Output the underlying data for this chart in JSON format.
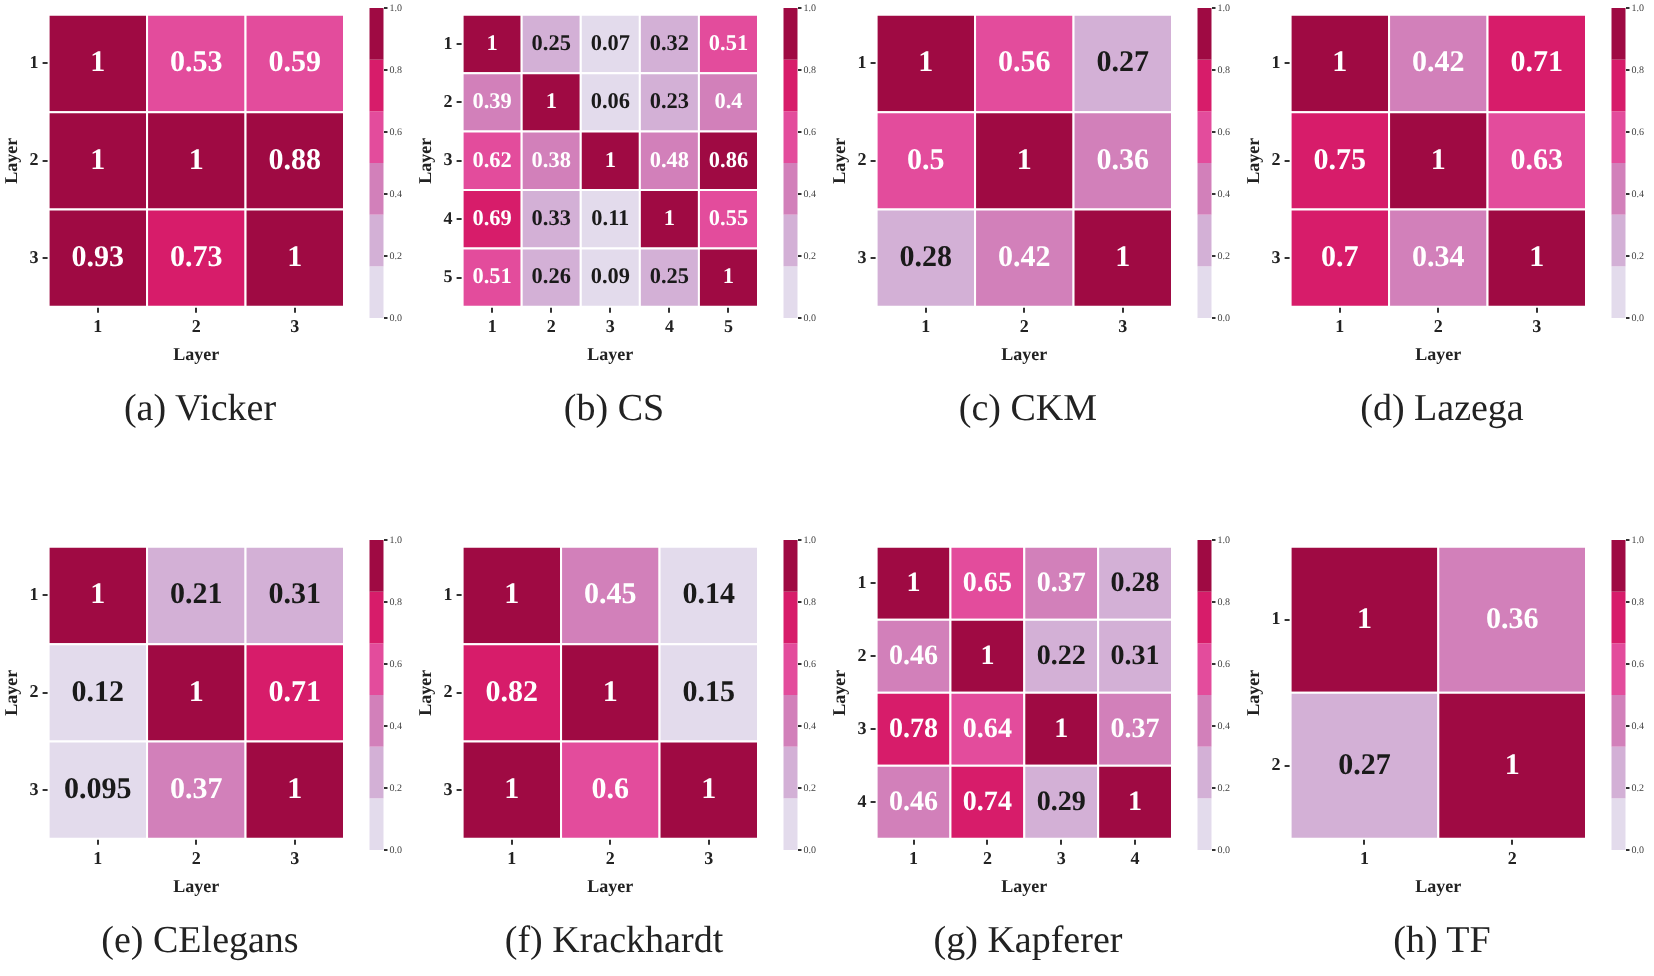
{
  "chart_data": [
    {
      "type": "heatmap",
      "title": "(a) Vicker",
      "xlabel": "Layer",
      "ylabel": "Layer",
      "categories": [
        "1",
        "2",
        "3"
      ],
      "y_categories": [
        "1",
        "2",
        "3"
      ],
      "cells": [
        [
          1,
          0.53,
          0.59
        ],
        [
          1,
          1,
          0.88
        ],
        [
          0.93,
          0.73,
          1
        ]
      ],
      "clim": [
        0,
        1
      ],
      "cticks": [
        {
          "value": 0,
          "label": "0.0"
        },
        {
          "value": 0.2,
          "label": "0.2"
        },
        {
          "value": 0.4,
          "label": "0.4"
        },
        {
          "value": 0.6,
          "label": "0.6"
        },
        {
          "value": 0.8,
          "label": "0.8"
        },
        {
          "value": 1,
          "label": "1.0"
        }
      ],
      "data_labels": true
    },
    {
      "type": "heatmap",
      "title": "(b) CS",
      "xlabel": "Layer",
      "ylabel": "Layer",
      "categories": [
        "1",
        "2",
        "3",
        "4",
        "5"
      ],
      "y_categories": [
        "1",
        "2",
        "3",
        "4",
        "5"
      ],
      "cells": [
        [
          1,
          0.25,
          0.07,
          0.32,
          0.51
        ],
        [
          0.39,
          1,
          0.06,
          0.23,
          0.4
        ],
        [
          0.62,
          0.38,
          1,
          0.48,
          0.86
        ],
        [
          0.69,
          0.33,
          0.11,
          1,
          0.55
        ],
        [
          0.51,
          0.26,
          0.09,
          0.25,
          1
        ]
      ],
      "clim": [
        0,
        1
      ],
      "cticks": [
        {
          "value": 0,
          "label": "0.0"
        },
        {
          "value": 0.2,
          "label": "0.2"
        },
        {
          "value": 0.4,
          "label": "0.4"
        },
        {
          "value": 0.6,
          "label": "0.6"
        },
        {
          "value": 0.8,
          "label": "0.8"
        },
        {
          "value": 1,
          "label": "1.0"
        }
      ],
      "data_labels": true
    },
    {
      "type": "heatmap",
      "title": "(c) CKM",
      "xlabel": "Layer",
      "ylabel": "Layer",
      "categories": [
        "1",
        "2",
        "3"
      ],
      "y_categories": [
        "1",
        "2",
        "3"
      ],
      "cells": [
        [
          1,
          0.56,
          0.27
        ],
        [
          0.5,
          1,
          0.36
        ],
        [
          0.28,
          0.42,
          1
        ]
      ],
      "clim": [
        0,
        1
      ],
      "cticks": [
        {
          "value": 0,
          "label": "0.0"
        },
        {
          "value": 0.2,
          "label": "0.2"
        },
        {
          "value": 0.4,
          "label": "0.4"
        },
        {
          "value": 0.6,
          "label": "0.6"
        },
        {
          "value": 0.8,
          "label": "0.8"
        },
        {
          "value": 1,
          "label": "1.0"
        }
      ],
      "data_labels": true
    },
    {
      "type": "heatmap",
      "title": "(d) Lazega",
      "xlabel": "Layer",
      "ylabel": "Layer",
      "categories": [
        "1",
        "2",
        "3"
      ],
      "y_categories": [
        "1",
        "2",
        "3"
      ],
      "cells": [
        [
          1,
          0.42,
          0.71
        ],
        [
          0.75,
          1,
          0.63
        ],
        [
          0.7,
          0.34,
          1
        ]
      ],
      "clim": [
        0,
        1
      ],
      "cticks": [
        {
          "value": 0,
          "label": "0.0"
        },
        {
          "value": 0.2,
          "label": "0.2"
        },
        {
          "value": 0.4,
          "label": "0.4"
        },
        {
          "value": 0.6,
          "label": "0.6"
        },
        {
          "value": 0.8,
          "label": "0.8"
        },
        {
          "value": 1,
          "label": "1.0"
        }
      ],
      "data_labels": true
    },
    {
      "type": "heatmap",
      "title": "(e) CElegans",
      "xlabel": "Layer",
      "ylabel": "Layer",
      "categories": [
        "1",
        "2",
        "3"
      ],
      "y_categories": [
        "1",
        "2",
        "3"
      ],
      "cells": [
        [
          1,
          0.21,
          0.31
        ],
        [
          0.12,
          1,
          0.71
        ],
        [
          0.095,
          0.37,
          1
        ]
      ],
      "clim": [
        0,
        1
      ],
      "cticks": [
        {
          "value": 0,
          "label": "0.0"
        },
        {
          "value": 0.2,
          "label": "0.2"
        },
        {
          "value": 0.4,
          "label": "0.4"
        },
        {
          "value": 0.6,
          "label": "0.6"
        },
        {
          "value": 0.8,
          "label": "0.8"
        },
        {
          "value": 1,
          "label": "1.0"
        }
      ],
      "data_labels": true
    },
    {
      "type": "heatmap",
      "title": "(f) Krackhardt",
      "xlabel": "Layer",
      "ylabel": "Layer",
      "categories": [
        "1",
        "2",
        "3"
      ],
      "y_categories": [
        "1",
        "2",
        "3"
      ],
      "cells": [
        [
          1,
          0.45,
          0.14
        ],
        [
          0.82,
          1,
          0.15
        ],
        [
          1,
          0.6,
          1
        ]
      ],
      "clim": [
        0,
        1
      ],
      "cticks": [
        {
          "value": 0,
          "label": "0.0"
        },
        {
          "value": 0.2,
          "label": "0.2"
        },
        {
          "value": 0.4,
          "label": "0.4"
        },
        {
          "value": 0.6,
          "label": "0.6"
        },
        {
          "value": 0.8,
          "label": "0.8"
        },
        {
          "value": 1,
          "label": "1.0"
        }
      ],
      "data_labels": true
    },
    {
      "type": "heatmap",
      "title": "(g) Kapferer",
      "xlabel": "Layer",
      "ylabel": "Layer",
      "categories": [
        "1",
        "2",
        "3",
        "4"
      ],
      "y_categories": [
        "1",
        "2",
        "3",
        "4"
      ],
      "cells": [
        [
          1,
          0.65,
          0.37,
          0.28
        ],
        [
          0.46,
          1,
          0.22,
          0.31
        ],
        [
          0.78,
          0.64,
          1,
          0.37
        ],
        [
          0.46,
          0.74,
          0.29,
          1
        ]
      ],
      "clim": [
        0,
        1
      ],
      "cticks": [
        {
          "value": 0,
          "label": "0.0"
        },
        {
          "value": 0.2,
          "label": "0.2"
        },
        {
          "value": 0.4,
          "label": "0.4"
        },
        {
          "value": 0.6,
          "label": "0.6"
        },
        {
          "value": 0.8,
          "label": "0.8"
        },
        {
          "value": 1,
          "label": "1.0"
        }
      ],
      "data_labels": true
    },
    {
      "type": "heatmap",
      "title": "(h) TF",
      "xlabel": "Layer",
      "ylabel": "Layer",
      "categories": [
        "1",
        "2"
      ],
      "y_categories": [
        "1",
        "2"
      ],
      "cells": [
        [
          1,
          0.36
        ],
        [
          0.27,
          1
        ]
      ],
      "clim": [
        0,
        1
      ],
      "cticks": [
        {
          "value": 0,
          "label": "0.0"
        },
        {
          "value": 0.2,
          "label": "0.2"
        },
        {
          "value": 0.4,
          "label": "0.4"
        },
        {
          "value": 0.6,
          "label": "0.6"
        },
        {
          "value": 0.8,
          "label": "0.8"
        },
        {
          "value": 1,
          "label": "1.0"
        }
      ],
      "data_labels": true
    }
  ]
}
